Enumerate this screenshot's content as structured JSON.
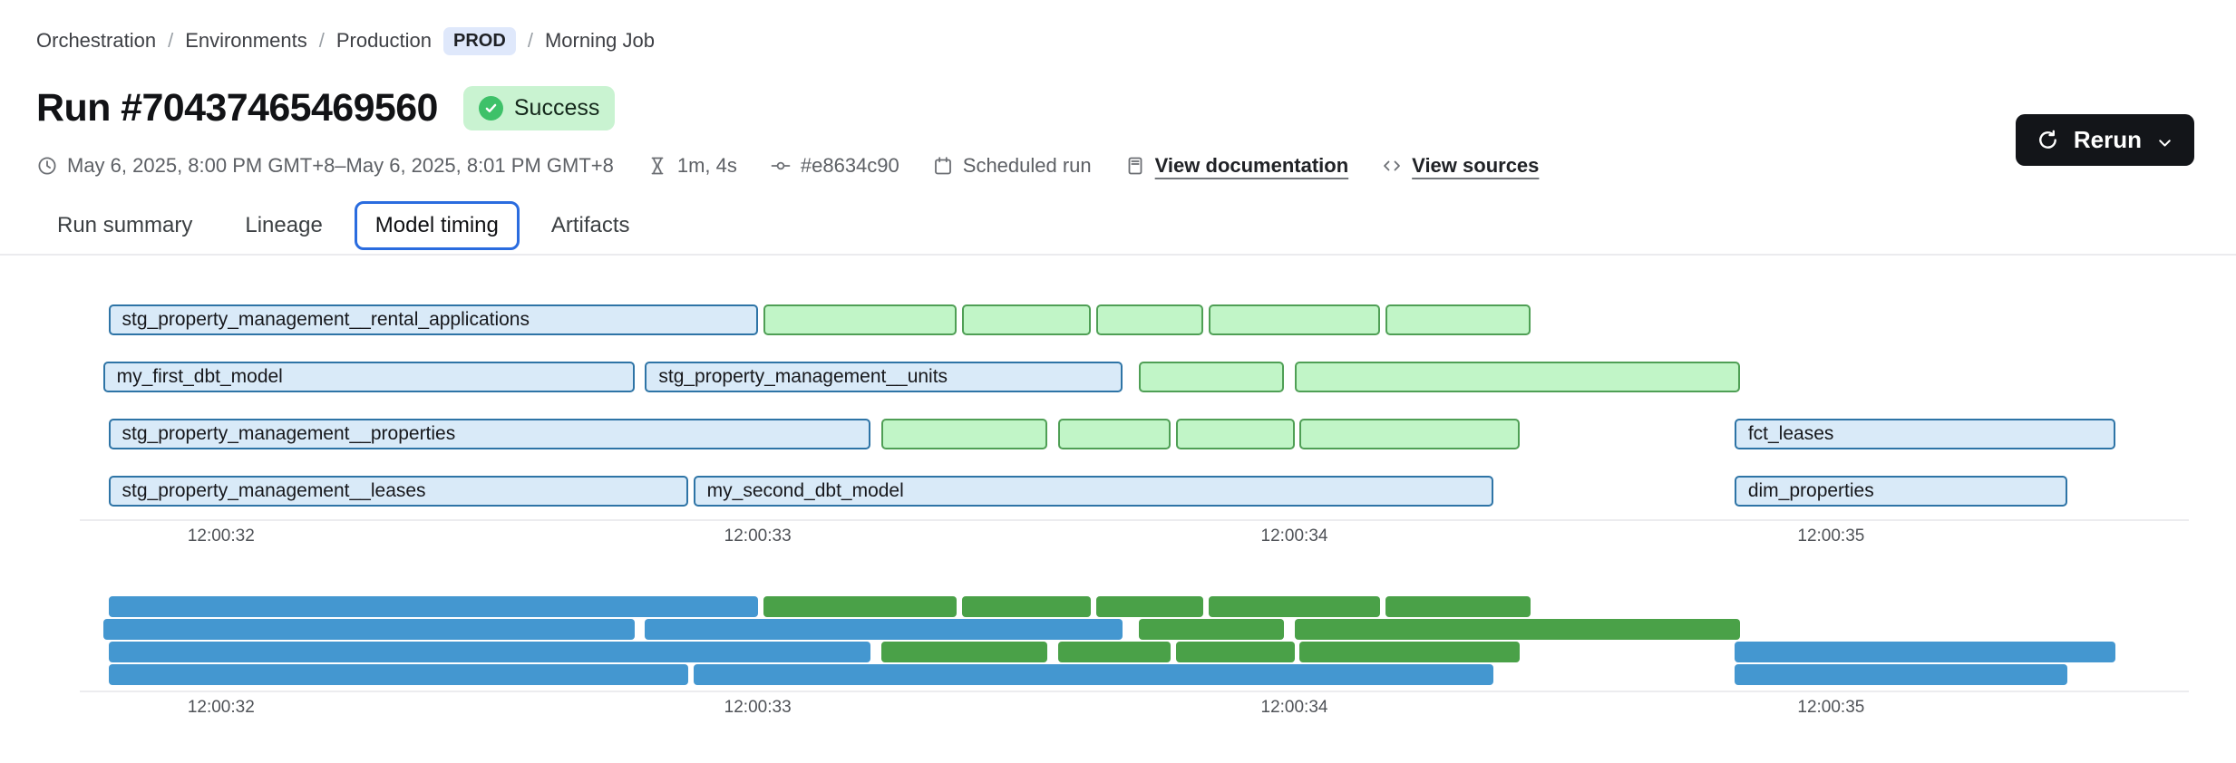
{
  "breadcrumb": {
    "separator": "/",
    "items": [
      {
        "name": "breadcrumb-orchestration",
        "label": "Orchestration",
        "separator_before": false,
        "badge": false,
        "interactable": true
      },
      {
        "name": "breadcrumb-environments",
        "label": "Environments",
        "separator_before": true,
        "badge": false,
        "interactable": true
      },
      {
        "name": "breadcrumb-production",
        "label": "Production",
        "separator_before": true,
        "badge": false,
        "interactable": true
      },
      {
        "name": "environment-badge",
        "label": "PROD",
        "separator_before": false,
        "badge": true,
        "interactable": false
      },
      {
        "name": "breadcrumb-morning-job",
        "label": "Morning Job",
        "separator_before": true,
        "badge": false,
        "interactable": true
      }
    ]
  },
  "run": {
    "title": "Run #70437465469560",
    "status": "Success"
  },
  "actions": {
    "rerun_label": "Rerun"
  },
  "meta": {
    "items": [
      {
        "name": "run-time-range",
        "icon": "clock-icon",
        "label": "May 6, 2025, 8:00 PM GMT+8–May 6, 2025, 8:01 PM GMT+8",
        "link": false
      },
      {
        "name": "run-duration",
        "icon": "hourglass-icon",
        "label": "1m, 4s",
        "link": false
      },
      {
        "name": "commit-sha",
        "icon": "commit-icon",
        "label": "#e8634c90",
        "link": false
      },
      {
        "name": "run-trigger",
        "icon": "calendar-icon",
        "label": "Scheduled run",
        "link": false
      },
      {
        "name": "view-documentation-link",
        "icon": "document-icon",
        "label": "View documentation",
        "link": true
      },
      {
        "name": "view-sources-link",
        "icon": "code-icon",
        "label": "View sources",
        "link": true
      }
    ]
  },
  "tabs": {
    "items": [
      {
        "name": "tab-run-summary",
        "label": "Run summary",
        "active": false
      },
      {
        "name": "tab-lineage",
        "label": "Lineage",
        "active": false
      },
      {
        "name": "tab-model-timing",
        "label": "Model timing",
        "active": true
      },
      {
        "name": "tab-artifacts",
        "label": "Artifacts",
        "active": false
      }
    ]
  },
  "colors": {
    "accent_blue": "#2a6cdf",
    "env_badge_bg": "#dfe8fb",
    "status_badge_bg": "#c9f3d1",
    "status_badge_dot": "#3ec169",
    "rerun_bg": "#131519",
    "bar_blue_fill": "#d9eaf8",
    "bar_blue_border": "#2e74a6",
    "bar_green_fill": "#c1f5c7",
    "bar_green_border": "#4f9f55",
    "minimap_blue": "#4497d0",
    "minimap_green": "#4aa148"
  },
  "chart_data": {
    "type": "gantt",
    "variant": "model-timing",
    "x_unit": "time of day (12:00:SS), values are seconds",
    "xlim": [
      31.757,
      35.633
    ],
    "x_ticks": [
      {
        "label": "12:00:32",
        "t": 32
      },
      {
        "label": "12:00:33",
        "t": 33
      },
      {
        "label": "12:00:34",
        "t": 34
      },
      {
        "label": "12:00:35",
        "t": 35
      }
    ],
    "legend": "blue = model run, green = downstream test/step; minimap below repeats the same bars in solid colors",
    "rows": [
      {
        "bars": [
          {
            "label": "stg_property_management__rental_applications",
            "kind": "blue",
            "start": 31.79,
            "end": 33.0
          },
          {
            "kind": "green",
            "start": 33.01,
            "end": 33.37
          },
          {
            "kind": "green",
            "start": 33.38,
            "end": 33.62
          },
          {
            "kind": "green",
            "start": 33.63,
            "end": 33.83
          },
          {
            "kind": "green",
            "start": 33.84,
            "end": 34.16
          },
          {
            "kind": "green",
            "start": 34.17,
            "end": 34.44
          }
        ]
      },
      {
        "bars": [
          {
            "label": "my_first_dbt_model",
            "kind": "blue",
            "start": 31.78,
            "end": 32.77
          },
          {
            "label": "stg_property_management__units",
            "kind": "blue",
            "start": 32.79,
            "end": 33.68
          },
          {
            "kind": "green",
            "start": 33.71,
            "end": 33.98
          },
          {
            "kind": "green",
            "start": 34.0,
            "end": 34.83
          }
        ]
      },
      {
        "bars": [
          {
            "label": "stg_property_management__properties",
            "kind": "blue",
            "start": 31.79,
            "end": 33.21
          },
          {
            "kind": "green",
            "start": 33.23,
            "end": 33.54
          },
          {
            "kind": "green",
            "start": 33.56,
            "end": 33.77
          },
          {
            "kind": "green",
            "start": 33.78,
            "end": 34.0
          },
          {
            "kind": "green",
            "start": 34.01,
            "end": 34.42
          },
          {
            "label": "fct_leases",
            "kind": "blue",
            "start": 34.82,
            "end": 35.53
          }
        ]
      },
      {
        "bars": [
          {
            "label": "stg_property_management__leases",
            "kind": "blue",
            "start": 31.79,
            "end": 32.87
          },
          {
            "label": "my_second_dbt_model",
            "kind": "blue",
            "start": 32.88,
            "end": 34.37
          },
          {
            "label": "dim_properties",
            "kind": "blue",
            "start": 34.82,
            "end": 35.44
          }
        ]
      }
    ]
  }
}
